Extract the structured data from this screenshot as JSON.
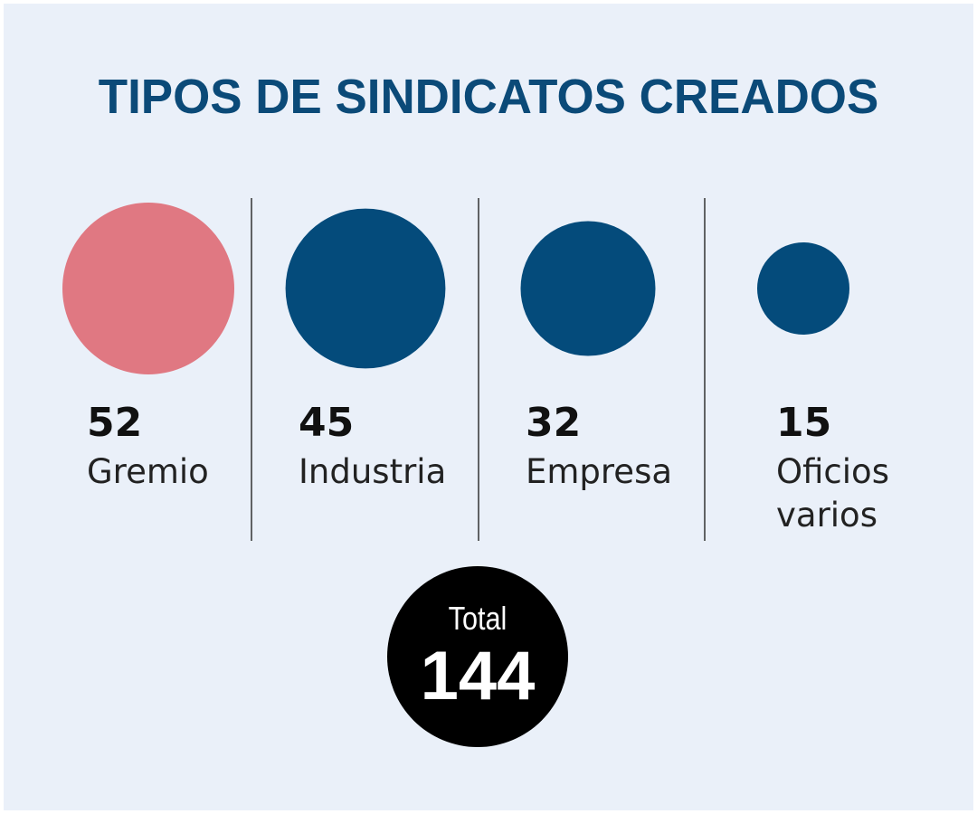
{
  "chart_data": {
    "type": "bubble",
    "title": "TIPOS DE SINDICATOS CREADOS",
    "categories": [
      "Gremio",
      "Industria",
      "Empresa",
      "Oficios varios"
    ],
    "values": [
      52,
      45,
      32,
      15
    ],
    "value_labels": [
      "52",
      "45",
      "32",
      "15"
    ],
    "colors": [
      "#e07882",
      "#044b7b",
      "#044b7b",
      "#044b7b"
    ],
    "total_label": "Total",
    "total_value": "144",
    "total_color": "#000000",
    "title_color": "#0b4a78",
    "divider_color": "#333333"
  }
}
